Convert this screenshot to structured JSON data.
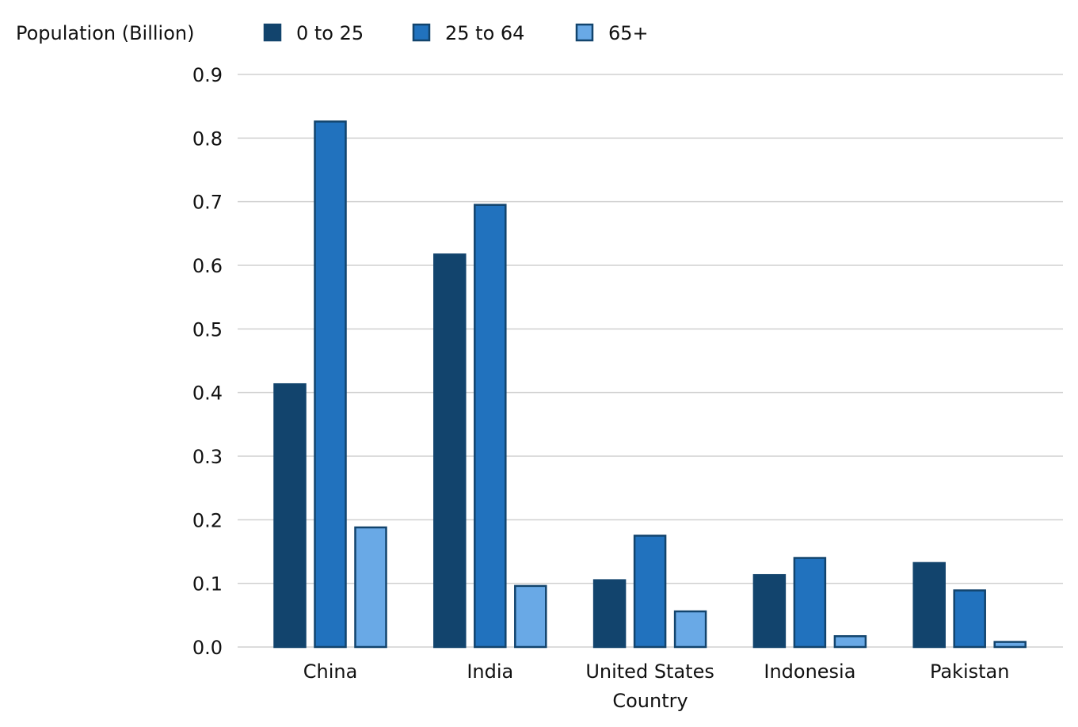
{
  "chart_data": {
    "type": "bar",
    "ylabel": "Population (Billion)",
    "xlabel": "Country",
    "categories": [
      "China",
      "India",
      "United States",
      "Indonesia",
      "Pakistan"
    ],
    "series": [
      {
        "name": "0 to 25",
        "values": [
          0.413,
          0.617,
          0.105,
          0.113,
          0.132
        ],
        "color": "#12446d",
        "stroke": "#12446d"
      },
      {
        "name": "25 to 64",
        "values": [
          0.826,
          0.695,
          0.175,
          0.14,
          0.089
        ],
        "color": "#2172be",
        "stroke": "#12446d"
      },
      {
        "name": "65+",
        "values": [
          0.188,
          0.096,
          0.056,
          0.017,
          0.008
        ],
        "color": "#69a9e6",
        "stroke": "#12446d"
      }
    ],
    "ylim": [
      0,
      0.9
    ],
    "yticks": [
      "0.0",
      "0.1",
      "0.2",
      "0.3",
      "0.4",
      "0.5",
      "0.6",
      "0.7",
      "0.8",
      "0.9"
    ],
    "grid": true,
    "legend_position": "top"
  }
}
